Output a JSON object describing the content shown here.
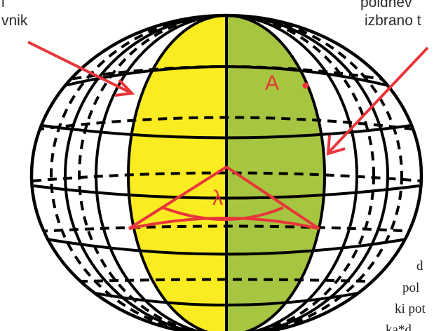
{
  "labels": {
    "top_left_line1": "i",
    "top_left_line2": "vnik",
    "top_right_line1": "poldnev",
    "top_right_line2": "izbrano t",
    "point_label": "A",
    "angle_label": "λ",
    "bottom_text_line1": "d",
    "bottom_text_line2": "pol",
    "bottom_text_line3": "ki pot",
    "bottom_text_line4": "ka*d"
  },
  "colors": {
    "left_half_fill": "#fbec22",
    "right_half_fill": "#a6c540",
    "accent_red": "#e8353a",
    "line": "#000000"
  }
}
